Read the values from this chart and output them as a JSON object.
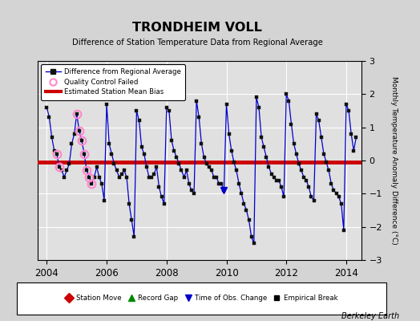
{
  "title": "TRONDHEIM VOLL",
  "subtitle": "Difference of Station Temperature Data from Regional Average",
  "ylabel_right": "Monthly Temperature Anomaly Difference (°C)",
  "xlim": [
    2003.7,
    2014.5
  ],
  "ylim": [
    -3,
    3
  ],
  "yticks": [
    -3,
    -2,
    -1,
    0,
    1,
    2,
    3
  ],
  "xticks": [
    2004,
    2006,
    2008,
    2010,
    2012,
    2014
  ],
  "bias_value": -0.05,
  "background_color": "#d4d4d4",
  "plot_bg_color": "#e0e0e0",
  "line_color": "#0000cc",
  "bias_color": "#cc0000",
  "qc_color": "#ff88cc",
  "grid_color": "#ffffff",
  "watermark": "Berkeley Earth",
  "months": [
    2004.0,
    2004.083,
    2004.167,
    2004.25,
    2004.333,
    2004.417,
    2004.5,
    2004.583,
    2004.667,
    2004.75,
    2004.833,
    2004.917,
    2005.0,
    2005.083,
    2005.167,
    2005.25,
    2005.333,
    2005.417,
    2005.5,
    2005.583,
    2005.667,
    2005.75,
    2005.833,
    2005.917,
    2006.0,
    2006.083,
    2006.167,
    2006.25,
    2006.333,
    2006.417,
    2006.5,
    2006.583,
    2006.667,
    2006.75,
    2006.833,
    2006.917,
    2007.0,
    2007.083,
    2007.167,
    2007.25,
    2007.333,
    2007.417,
    2007.5,
    2007.583,
    2007.667,
    2007.75,
    2007.833,
    2007.917,
    2008.0,
    2008.083,
    2008.167,
    2008.25,
    2008.333,
    2008.417,
    2008.5,
    2008.583,
    2008.667,
    2008.75,
    2008.833,
    2008.917,
    2009.0,
    2009.083,
    2009.167,
    2009.25,
    2009.333,
    2009.417,
    2009.5,
    2009.583,
    2009.667,
    2009.75,
    2009.833,
    2009.917,
    2010.0,
    2010.083,
    2010.167,
    2010.25,
    2010.333,
    2010.417,
    2010.5,
    2010.583,
    2010.667,
    2010.75,
    2010.833,
    2010.917,
    2011.0,
    2011.083,
    2011.167,
    2011.25,
    2011.333,
    2011.417,
    2011.5,
    2011.583,
    2011.667,
    2011.75,
    2011.833,
    2011.917,
    2012.0,
    2012.083,
    2012.167,
    2012.25,
    2012.333,
    2012.417,
    2012.5,
    2012.583,
    2012.667,
    2012.75,
    2012.833,
    2012.917,
    2013.0,
    2013.083,
    2013.167,
    2013.25,
    2013.333,
    2013.417,
    2013.5,
    2013.583,
    2013.667,
    2013.75,
    2013.833,
    2013.917,
    2014.0,
    2014.083,
    2014.167,
    2014.25,
    2014.333
  ],
  "values": [
    1.6,
    1.3,
    0.7,
    0.3,
    0.2,
    -0.2,
    -0.3,
    -0.5,
    -0.3,
    -0.1,
    0.5,
    0.8,
    1.4,
    0.9,
    0.6,
    0.2,
    -0.3,
    -0.5,
    -0.7,
    -0.5,
    -0.2,
    -0.5,
    -0.7,
    -1.2,
    1.7,
    0.5,
    0.2,
    -0.1,
    -0.3,
    -0.5,
    -0.4,
    -0.3,
    -0.5,
    -1.3,
    -1.8,
    -2.3,
    1.5,
    1.2,
    0.4,
    0.2,
    -0.2,
    -0.5,
    -0.5,
    -0.4,
    -0.2,
    -0.8,
    -1.1,
    -1.3,
    1.6,
    1.5,
    0.6,
    0.3,
    0.1,
    -0.1,
    -0.3,
    -0.5,
    -0.3,
    -0.7,
    -0.9,
    -1.0,
    1.8,
    1.3,
    0.5,
    0.1,
    -0.1,
    -0.2,
    -0.3,
    -0.5,
    -0.5,
    -0.7,
    -0.7,
    -0.9,
    1.7,
    0.8,
    0.3,
    -0.05,
    -0.3,
    -0.7,
    -1.0,
    -1.3,
    -1.5,
    -1.8,
    -2.3,
    -2.5,
    1.9,
    1.6,
    0.7,
    0.4,
    0.1,
    -0.2,
    -0.4,
    -0.5,
    -0.6,
    -0.6,
    -0.8,
    -1.1,
    2.0,
    1.8,
    1.1,
    0.5,
    0.2,
    -0.1,
    -0.3,
    -0.5,
    -0.6,
    -0.8,
    -1.1,
    -1.2,
    1.4,
    1.2,
    0.7,
    0.2,
    -0.05,
    -0.3,
    -0.7,
    -0.9,
    -1.0,
    -1.1,
    -1.3,
    -2.1,
    1.7,
    1.5,
    0.8,
    0.3,
    0.7
  ],
  "qc_failed_x": [
    2004.333,
    2004.417,
    2005.0,
    2005.083,
    2005.167,
    2005.25,
    2005.333,
    2005.417,
    2005.5
  ],
  "qc_failed_y": [
    0.2,
    -0.2,
    1.4,
    0.9,
    0.6,
    0.2,
    -0.3,
    -0.5,
    -0.7
  ],
  "obs_change_x": [
    2009.917
  ],
  "obs_change_y": [
    -0.9
  ]
}
